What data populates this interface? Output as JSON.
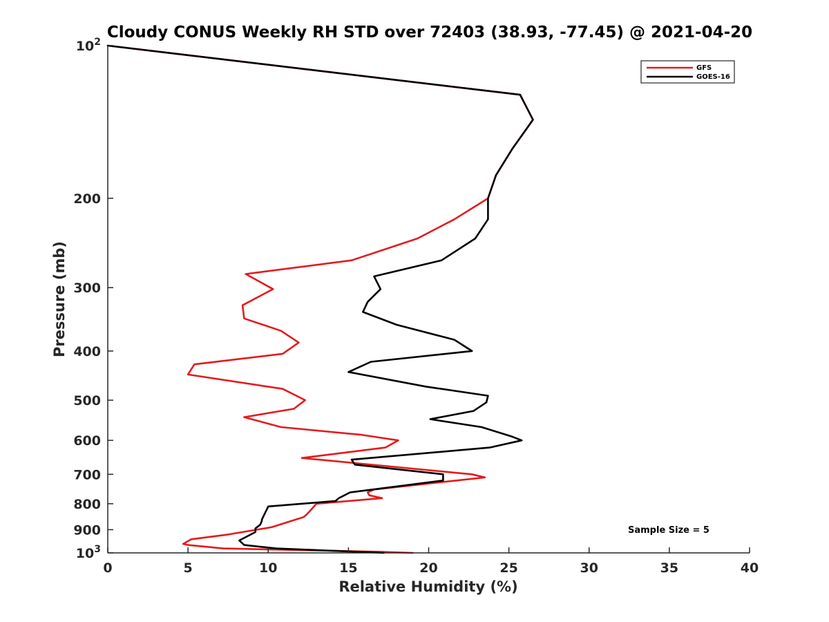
{
  "chart_data": {
    "type": "line",
    "title": "Cloudy CONUS Weekly RH STD over 72403 (38.93, -77.45) @ 2021-04-20",
    "xlabel": "Relative Humidity (%)",
    "ylabel": "Pressure (mb)",
    "xlim": [
      0,
      40
    ],
    "ylim": [
      100,
      1000
    ],
    "y_scale": "log",
    "y_reversed": true,
    "x_ticks": [
      "0",
      "5",
      "10",
      "15",
      "20",
      "25",
      "30",
      "35",
      "40"
    ],
    "y_ticks": [
      {
        "value": 100,
        "base": "10",
        "exp": "2"
      },
      {
        "value": 200,
        "label": "200"
      },
      {
        "value": 300,
        "label": "300"
      },
      {
        "value": 400,
        "label": "400"
      },
      {
        "value": 500,
        "label": "500"
      },
      {
        "value": 600,
        "label": "600"
      },
      {
        "value": 700,
        "label": "700"
      },
      {
        "value": 800,
        "label": "800"
      },
      {
        "value": 900,
        "label": "900"
      },
      {
        "value": 1000,
        "base": "10",
        "exp": "3"
      }
    ],
    "grid": false,
    "legend_position": "top-right",
    "series": [
      {
        "name": "GFS",
        "color": "#e41a1c",
        "points": [
          [
            19.0,
            1000
          ],
          [
            17.0,
            995
          ],
          [
            7.2,
            980
          ],
          [
            5.0,
            965
          ],
          [
            4.7,
            960
          ],
          [
            5.2,
            940
          ],
          [
            7.5,
            920
          ],
          [
            10.2,
            890
          ],
          [
            12.2,
            850
          ],
          [
            12.4,
            840
          ],
          [
            12.7,
            820
          ],
          [
            13.0,
            800
          ],
          [
            17.1,
            780
          ],
          [
            16.3,
            770
          ],
          [
            16.2,
            760
          ],
          [
            16.6,
            750
          ],
          [
            23.5,
            710
          ],
          [
            22.7,
            700
          ],
          [
            12.1,
            650
          ],
          [
            17.3,
            620
          ],
          [
            18.1,
            600
          ],
          [
            15.8,
            585
          ],
          [
            10.8,
            565
          ],
          [
            8.5,
            540
          ],
          [
            11.6,
            520
          ],
          [
            12.3,
            500
          ],
          [
            10.9,
            475
          ],
          [
            5.0,
            445
          ],
          [
            5.4,
            425
          ],
          [
            10.9,
            405
          ],
          [
            11.9,
            385
          ],
          [
            10.8,
            365
          ],
          [
            8.5,
            345
          ],
          [
            8.4,
            325
          ],
          [
            10.3,
            302
          ],
          [
            8.6,
            282
          ],
          [
            15.2,
            265
          ],
          [
            19.3,
            240
          ],
          [
            21.6,
            220
          ],
          [
            23.7,
            200
          ],
          [
            24.2,
            180
          ],
          [
            25.2,
            160
          ],
          [
            26.5,
            140
          ],
          [
            25.7,
            125
          ],
          [
            0.0,
            100
          ]
        ]
      },
      {
        "name": "GOES-16",
        "color": "#000000",
        "points": [
          [
            17.2,
            1000
          ],
          [
            10.5,
            980
          ],
          [
            8.5,
            965
          ],
          [
            8.2,
            945
          ],
          [
            9.2,
            910
          ],
          [
            9.2,
            895
          ],
          [
            9.5,
            880
          ],
          [
            9.6,
            865
          ],
          [
            9.6,
            860
          ],
          [
            10.0,
            810
          ],
          [
            14.2,
            790
          ],
          [
            14.4,
            780
          ],
          [
            15.1,
            760
          ],
          [
            20.9,
            720
          ],
          [
            20.9,
            700
          ],
          [
            15.4,
            670
          ],
          [
            15.2,
            655
          ],
          [
            23.8,
            620
          ],
          [
            25.8,
            600
          ],
          [
            25.2,
            590
          ],
          [
            23.3,
            565
          ],
          [
            20.1,
            545
          ],
          [
            22.8,
            525
          ],
          [
            23.6,
            505
          ],
          [
            23.7,
            490
          ],
          [
            19.8,
            470
          ],
          [
            15.0,
            440
          ],
          [
            16.4,
            420
          ],
          [
            22.7,
            400
          ],
          [
            21.6,
            380
          ],
          [
            18.0,
            355
          ],
          [
            15.9,
            335
          ],
          [
            16.2,
            320
          ],
          [
            17.0,
            302
          ],
          [
            16.6,
            285
          ],
          [
            20.8,
            265
          ],
          [
            22.9,
            240
          ],
          [
            23.7,
            220
          ],
          [
            23.7,
            200
          ],
          [
            24.2,
            180
          ],
          [
            25.2,
            160
          ],
          [
            26.5,
            140
          ],
          [
            25.7,
            125
          ],
          [
            0.0,
            100
          ]
        ]
      }
    ],
    "annotation": "Sample Size = 5"
  }
}
